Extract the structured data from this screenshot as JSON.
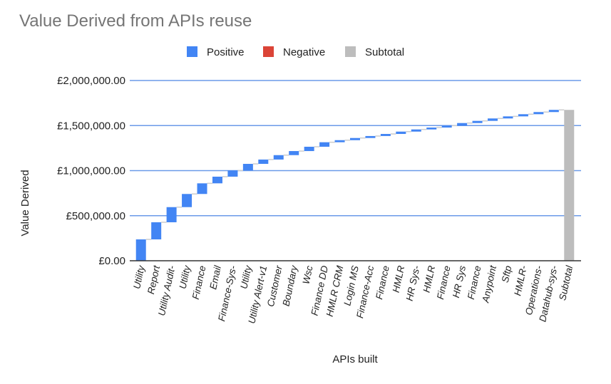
{
  "chart_data": {
    "type": "waterfall",
    "title": "Value Derived from APIs reuse",
    "xlabel": "APIs built",
    "ylabel": "Value Derived",
    "ylim": [
      0,
      2000000
    ],
    "yticks": [
      "£0.00",
      "£500,000.00",
      "£1,000,000.00",
      "£1,500,000.00",
      "£2,000,000.00"
    ],
    "ytick_values": [
      0,
      500000,
      1000000,
      1500000,
      2000000
    ],
    "grid": true,
    "legend_position": "top",
    "legend": [
      {
        "name": "Positive",
        "color": "#4285f4"
      },
      {
        "name": "Negative",
        "color": "#db4437"
      },
      {
        "name": "Subtotal",
        "color": "#bdbdbd"
      }
    ],
    "categories": [
      "Utility",
      "Report",
      "Utility Audit-",
      "Utility",
      "Finance",
      "Email",
      "Finance-Sys-",
      "Utility",
      "Utility Alert-v1",
      "Customer",
      "Boundary",
      "Wsc",
      "Finance DD",
      "HMLR CRM",
      "Login MS",
      "Finance-Acc",
      "Finance",
      "HMLR",
      "HR Sys-",
      "HMLR",
      "Finance",
      "HR Sys",
      "Finance",
      "Anypoint",
      "Sftp",
      "HMLR-",
      "Operations-",
      "Datahub-sys-"
    ],
    "values": [
      237000,
      190000,
      168000,
      146000,
      118000,
      74000,
      69000,
      73000,
      48000,
      49000,
      45000,
      48000,
      50000,
      23000,
      24000,
      22000,
      23000,
      26000,
      24000,
      21000,
      21000,
      29000,
      24000,
      27000,
      23000,
      24000,
      24000,
      24000
    ],
    "subtotal_label": "Subtotal",
    "subtotal_value": 1674000
  }
}
